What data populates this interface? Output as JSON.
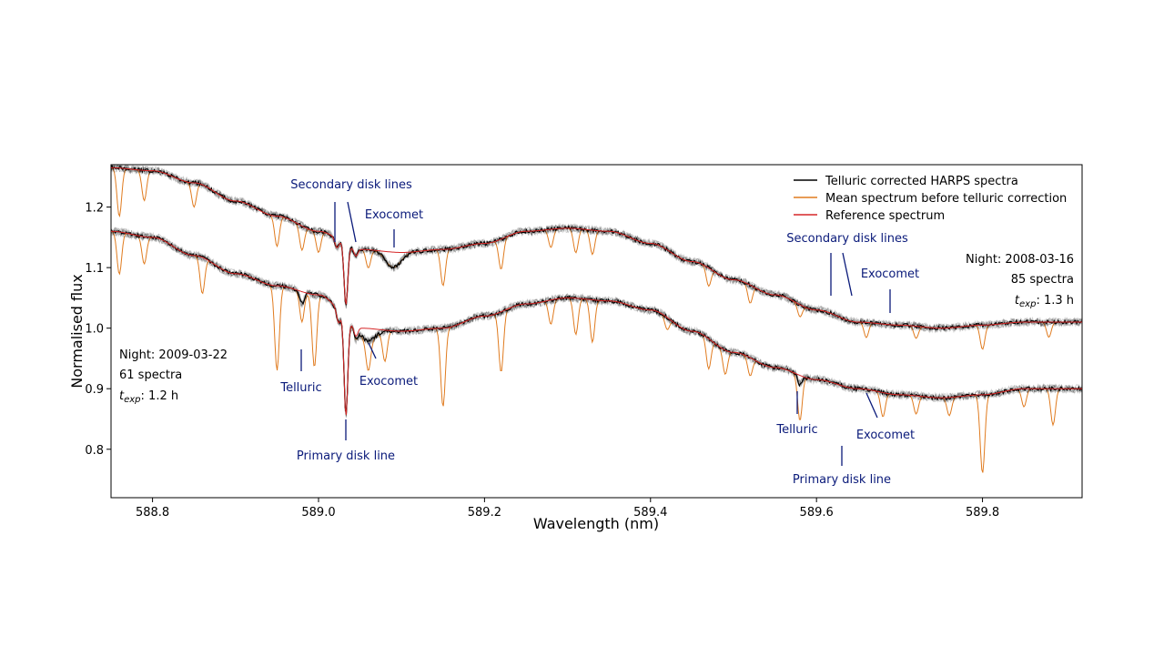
{
  "chart_data": {
    "type": "line",
    "xlabel": "Wavelength (nm)",
    "ylabel": "Normalised flux",
    "xlim": [
      588.75,
      589.92
    ],
    "ylim": [
      0.72,
      1.27
    ],
    "xticks": [
      588.8,
      589.0,
      589.2,
      589.4,
      589.6,
      589.8
    ],
    "xtick_labels": [
      "588.8",
      "589.0",
      "589.2",
      "589.4",
      "589.6",
      "589.8"
    ],
    "yticks": [
      0.8,
      0.9,
      1.0,
      1.1,
      1.2
    ],
    "ytick_labels": [
      "0.8",
      "0.9",
      "1.0",
      "1.1",
      "1.2"
    ],
    "grid": false,
    "legend_position": "top-right",
    "series": [
      {
        "name": "Telluric corrected HARPS spectra",
        "color": "#000000"
      },
      {
        "name": "Mean spectrum before telluric correction",
        "color": "#e07b1f"
      },
      {
        "name": "Reference spectrum",
        "color": "#d62728"
      }
    ],
    "spectra": [
      {
        "id": "upper",
        "continuum": [
          [
            588.75,
            1.265
          ],
          [
            588.8,
            1.26
          ],
          [
            588.85,
            1.24
          ],
          [
            588.9,
            1.21
          ],
          [
            588.95,
            1.185
          ],
          [
            589.0,
            1.16
          ],
          [
            589.05,
            1.13
          ],
          [
            589.1,
            1.125
          ],
          [
            589.15,
            1.13
          ],
          [
            589.2,
            1.14
          ],
          [
            589.25,
            1.16
          ],
          [
            589.3,
            1.165
          ],
          [
            589.35,
            1.16
          ],
          [
            589.4,
            1.14
          ],
          [
            589.45,
            1.11
          ],
          [
            589.5,
            1.08
          ],
          [
            589.55,
            1.055
          ],
          [
            589.6,
            1.03
          ],
          [
            589.65,
            1.01
          ],
          [
            589.7,
            1.005
          ],
          [
            589.75,
            1.0
          ],
          [
            589.8,
            1.005
          ],
          [
            589.85,
            1.01
          ],
          [
            589.92,
            1.01
          ]
        ],
        "disk_lines": [
          [
            589.033,
            0.1
          ],
          [
            589.022,
            0.015
          ],
          [
            589.045,
            0.012
          ]
        ],
        "comet_lines": [
          [
            589.09,
            0.025
          ]
        ],
        "telluric_lines": [
          [
            588.76,
            0.08
          ],
          [
            588.79,
            0.05
          ],
          [
            588.85,
            0.04
          ],
          [
            588.95,
            0.05
          ],
          [
            588.98,
            0.04
          ],
          [
            589.0,
            0.035
          ],
          [
            589.06,
            0.03
          ],
          [
            589.15,
            0.06
          ],
          [
            589.22,
            0.05
          ],
          [
            589.28,
            0.03
          ],
          [
            589.31,
            0.04
          ],
          [
            589.33,
            0.04
          ],
          [
            589.47,
            0.03
          ],
          [
            589.52,
            0.03
          ],
          [
            589.58,
            0.02
          ],
          [
            589.66,
            0.025
          ],
          [
            589.72,
            0.02
          ],
          [
            589.8,
            0.04
          ],
          [
            589.88,
            0.025
          ]
        ]
      },
      {
        "id": "lower",
        "continuum": [
          [
            588.75,
            1.16
          ],
          [
            588.8,
            1.15
          ],
          [
            588.85,
            1.12
          ],
          [
            588.9,
            1.09
          ],
          [
            588.95,
            1.07
          ],
          [
            589.0,
            1.055
          ],
          [
            589.05,
            1.0
          ],
          [
            589.1,
            0.995
          ],
          [
            589.15,
            1.0
          ],
          [
            589.2,
            1.02
          ],
          [
            589.25,
            1.04
          ],
          [
            589.3,
            1.05
          ],
          [
            589.35,
            1.045
          ],
          [
            589.4,
            1.03
          ],
          [
            589.45,
            0.995
          ],
          [
            589.5,
            0.96
          ],
          [
            589.55,
            0.935
          ],
          [
            589.6,
            0.915
          ],
          [
            589.65,
            0.9
          ],
          [
            589.7,
            0.89
          ],
          [
            589.75,
            0.885
          ],
          [
            589.8,
            0.89
          ],
          [
            589.85,
            0.9
          ],
          [
            589.92,
            0.9
          ]
        ],
        "disk_lines": [
          [
            589.033,
            0.16
          ],
          [
            589.024,
            0.02
          ],
          [
            589.045,
            0.015
          ]
        ],
        "comet_lines": [
          [
            589.06,
            0.02
          ]
        ],
        "telluric_lines": [
          [
            588.76,
            0.07
          ],
          [
            588.79,
            0.045
          ],
          [
            588.86,
            0.06
          ],
          [
            588.95,
            0.14
          ],
          [
            588.98,
            0.03
          ],
          [
            588.995,
            0.12
          ],
          [
            589.06,
            0.05
          ],
          [
            589.08,
            0.05
          ],
          [
            589.15,
            0.13
          ],
          [
            589.22,
            0.1
          ],
          [
            589.28,
            0.04
          ],
          [
            589.31,
            0.06
          ],
          [
            589.33,
            0.07
          ],
          [
            589.42,
            0.02
          ],
          [
            589.47,
            0.05
          ],
          [
            589.49,
            0.04
          ],
          [
            589.52,
            0.03
          ],
          [
            589.58,
            0.06
          ],
          [
            589.68,
            0.04
          ],
          [
            589.72,
            0.03
          ],
          [
            589.76,
            0.03
          ],
          [
            589.8,
            0.13
          ],
          [
            589.85,
            0.03
          ],
          [
            589.885,
            0.06
          ]
        ],
        "lower_extra": [
          [
            588.98,
            0.02
          ],
          [
            589.58,
            0.015
          ]
        ]
      }
    ],
    "info_blocks": [
      {
        "night": "Night: 2009-03-22",
        "spectra": "61 spectra",
        "texp_prefix": "t",
        "texp_sub": "exp",
        "texp_value": ": 1.2 h"
      },
      {
        "night": "Night: 2008-03-16",
        "spectra": "85 spectra",
        "texp_prefix": "t",
        "texp_sub": "exp",
        "texp_value": ": 1.3 h"
      }
    ],
    "annotations": {
      "secondary_left": "Secondary disk lines",
      "exocomet_left_top": "Exocomet",
      "telluric_left": "Telluric",
      "exocomet_left_bottom": "Exocomet",
      "primary_left": "Primary disk line",
      "secondary_right": "Secondary disk lines",
      "exocomet_right_top": "Exocomet",
      "telluric_right": "Telluric",
      "exocomet_right_bottom": "Exocomet",
      "primary_right": "Primary disk line"
    }
  }
}
